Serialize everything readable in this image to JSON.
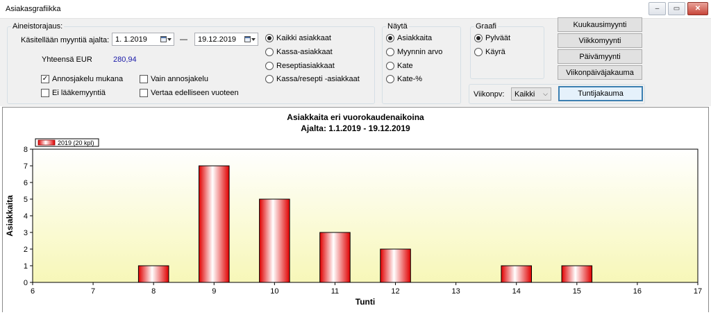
{
  "window": {
    "title": "Asiakasgrafiikka",
    "minimize_glyph": "–",
    "restore_glyph": "▭",
    "close_glyph": "✕"
  },
  "filters": {
    "legend": "Aineistorajaus:",
    "period_label": "Käsitellään myyntiä ajalta:",
    "date_from": "1.  1.2019",
    "date_separator": "—",
    "date_to": "19.12.2019",
    "total_label": "Yhteensä EUR",
    "total_value": "280,94",
    "checkboxes": [
      {
        "label": "Annosjakelu mukana",
        "checked": true
      },
      {
        "label": "Vain annosjakelu",
        "checked": false
      },
      {
        "label": "Ei lääkemyyntiä",
        "checked": false
      },
      {
        "label": "Vertaa edelliseen vuoteen",
        "checked": false
      }
    ],
    "customer_types": [
      {
        "label": "Kaikki asiakkaat",
        "selected": true
      },
      {
        "label": "Kassa-asiakkaat",
        "selected": false
      },
      {
        "label": "Reseptiasiakkaat",
        "selected": false
      },
      {
        "label": "Kassa/resepti -asiakkaat",
        "selected": false
      }
    ]
  },
  "show": {
    "legend": "Näytä",
    "options": [
      {
        "label": "Asiakkaita",
        "selected": true
      },
      {
        "label": "Myynnin arvo",
        "selected": false
      },
      {
        "label": "Kate",
        "selected": false
      },
      {
        "label": "Kate-%",
        "selected": false
      }
    ]
  },
  "graph": {
    "legend": "Graafi",
    "options": [
      {
        "label": "Pylväät",
        "selected": true
      },
      {
        "label": "Käyrä",
        "selected": false
      }
    ]
  },
  "buttons": {
    "monthly": "Kuukausimyynti",
    "weekly": "Viikkomyynti",
    "daily": "Päivämyynti",
    "weekday": "Viikonpäiväjakauma",
    "hourly": "Tuntijakauma"
  },
  "weekday_filter": {
    "label": "Viikonpv:",
    "value": "Kaikki"
  },
  "colors": {
    "bar_edge": "#e00000",
    "bar_center": "#ffffff",
    "plot_top": "#ffffff",
    "plot_bottom": "#f7f7b8"
  },
  "chart_data": {
    "type": "bar",
    "title": "Asiakkaita eri vuorokaudenaikoina",
    "subtitle": "Ajalta: 1.1.2019 - 19.12.2019",
    "xlabel": "Tunti",
    "ylabel": "Asiakkaita",
    "xlim": [
      6,
      17
    ],
    "ylim": [
      0,
      8
    ],
    "x_ticks": [
      6,
      7,
      8,
      9,
      10,
      11,
      12,
      13,
      14,
      15,
      16,
      17
    ],
    "y_ticks": [
      0,
      1,
      2,
      3,
      4,
      5,
      6,
      7,
      8
    ],
    "legend_placement": "top-left",
    "grid": false,
    "series": [
      {
        "name": "2019 (20 kpl)",
        "x": [
          8,
          9,
          10,
          11,
          12,
          14,
          15
        ],
        "values": [
          1,
          7,
          5,
          3,
          2,
          1,
          1
        ]
      }
    ]
  }
}
